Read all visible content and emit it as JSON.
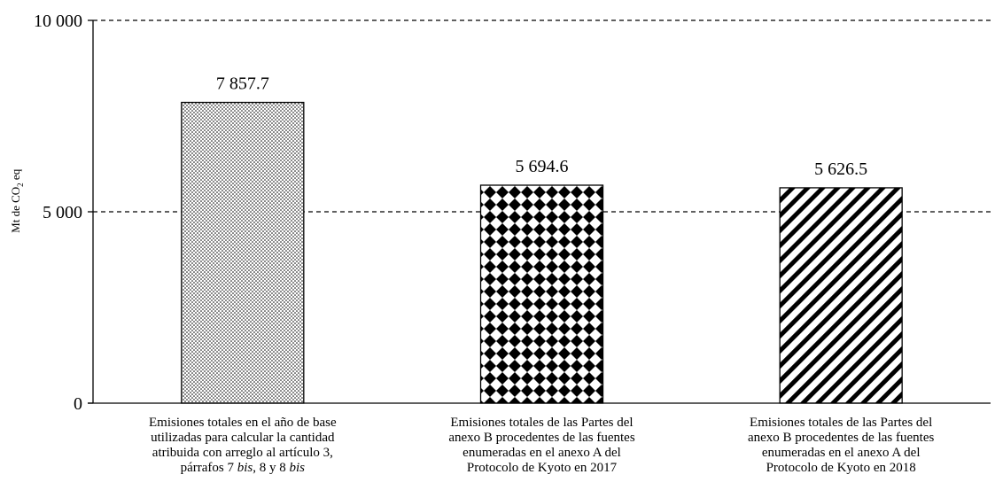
{
  "chart_data": {
    "type": "bar",
    "ylabel": "Mt de CO",
    "ylabel_sub": "2",
    "ylabel_suffix": " eq",
    "ylim": [
      0,
      10000
    ],
    "yticks": [
      {
        "value": 0,
        "label": "0"
      },
      {
        "value": 5000,
        "label": "5 000"
      },
      {
        "value": 10000,
        "label": "10 000"
      }
    ],
    "grid": "dashed horizontal",
    "categories": [
      {
        "lines": [
          {
            "text": "Emisiones totales en el año de base"
          },
          {
            "text": "utilizadas para calcular la cantidad"
          },
          {
            "text": "atribuida con arreglo al artículo 3,"
          },
          {
            "text": "párrafos 7 ",
            "italic": "bis",
            "rest": ", 8 y 8 ",
            "italic2": "bis"
          }
        ]
      },
      {
        "lines": [
          {
            "text": "Emisiones totales de las Partes del"
          },
          {
            "text": "anexo B procedentes de las fuentes"
          },
          {
            "text": "enumeradas en el anexo A del"
          },
          {
            "text": "Protocolo de Kyoto en 2017"
          }
        ]
      },
      {
        "lines": [
          {
            "text": "Emisiones totales de las Partes del"
          },
          {
            "text": "anexo B procedentes de las fuentes"
          },
          {
            "text": "enumeradas en el anexo A del"
          },
          {
            "text": "Protocolo de Kyoto en 2018"
          }
        ]
      }
    ],
    "values": [
      7857.7,
      5694.6,
      5626.5
    ],
    "data_labels": [
      "7 857.7",
      "5 694.6",
      "5 626.5"
    ],
    "patterns": [
      "dots",
      "diamond-check",
      "diagonal-stripes"
    ],
    "colors": {
      "ink": "#000000",
      "background": "#ffffff"
    }
  }
}
